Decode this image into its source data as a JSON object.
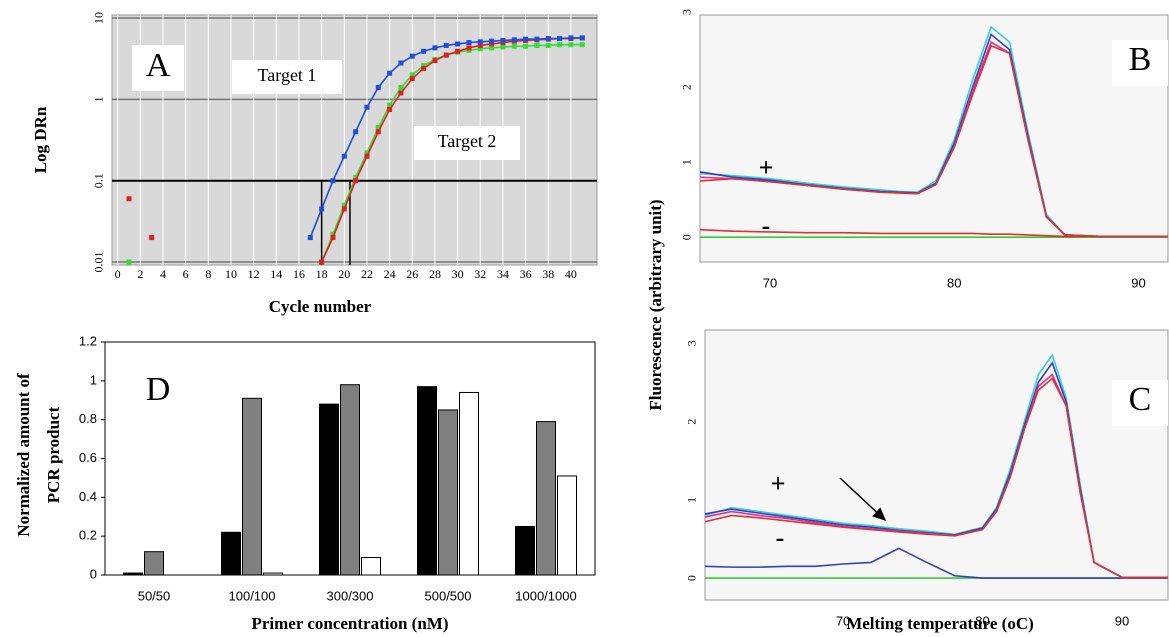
{
  "chart_data": [
    {
      "type": "line",
      "yscale": "log",
      "markers": true,
      "panel_label": "A",
      "ylabel": "Log DRn",
      "xlabel": "Cycle number",
      "annotations": [
        "Target 1",
        "Target 2"
      ],
      "xlim": [
        -0.5,
        42.3
      ],
      "ylim": [
        0.0092,
        10.9
      ],
      "xticks": [
        0,
        2,
        4,
        6,
        8,
        10,
        12,
        14,
        16,
        18,
        20,
        22,
        24,
        26,
        28,
        30,
        32,
        34,
        36,
        38,
        40
      ],
      "yticks": [
        0.01,
        0.1,
        1,
        10
      ],
      "grid": true,
      "background": "#d9d9d9",
      "threshold": 0.1,
      "ct": [
        18,
        20.5
      ],
      "series": [
        {
          "color": "#33dd33",
          "x": [
            1,
            2,
            18,
            19,
            20,
            21,
            22,
            23,
            24,
            25,
            26,
            27,
            28,
            29,
            30,
            31,
            32,
            33,
            34,
            35,
            36,
            37,
            38,
            39,
            40,
            41
          ],
          "values": [
            0.01,
            null,
            0.01,
            0.022,
            0.05,
            0.11,
            0.22,
            0.45,
            0.85,
            1.4,
            2.0,
            2.6,
            3.1,
            3.5,
            3.8,
            4.0,
            4.2,
            4.3,
            4.4,
            4.5,
            4.5,
            4.6,
            4.6,
            4.7,
            4.7,
            4.7
          ]
        },
        {
          "color": "#e02020",
          "x": [
            1,
            2,
            3,
            4,
            18,
            19,
            20,
            21,
            22,
            23,
            24,
            25,
            26,
            27,
            28,
            29,
            30,
            31,
            32,
            33,
            34,
            35,
            36,
            37,
            38,
            39,
            40,
            41
          ],
          "values": [
            0.06,
            null,
            0.02,
            null,
            0.01,
            0.02,
            0.045,
            0.1,
            0.2,
            0.4,
            0.75,
            1.2,
            1.8,
            2.4,
            3.0,
            3.5,
            3.9,
            4.3,
            4.6,
            4.8,
            5.0,
            5.2,
            5.3,
            5.4,
            5.5,
            5.6,
            5.6,
            5.7
          ]
        },
        {
          "color": "#1f4fd8",
          "x": [
            17,
            18,
            19,
            20,
            21,
            22,
            23,
            24,
            25,
            26,
            27,
            28,
            29,
            30,
            31,
            32,
            33,
            34,
            35,
            36,
            37,
            38,
            39,
            40,
            41
          ],
          "values": [
            0.02,
            0.045,
            0.1,
            0.2,
            0.4,
            0.8,
            1.4,
            2.1,
            2.8,
            3.4,
            3.9,
            4.3,
            4.6,
            4.8,
            5.0,
            5.1,
            5.2,
            5.3,
            5.4,
            5.5,
            5.5,
            5.6,
            5.6,
            5.7,
            5.7
          ]
        }
      ]
    },
    {
      "type": "line",
      "panel_label": "B",
      "ylabel": "Fluorescence (arbitrary unit)",
      "annotations": [
        "+",
        "-"
      ],
      "xlim": [
        66.2,
        91.6
      ],
      "ylim": [
        -0.33,
        2.96
      ],
      "xticks": [
        70,
        80,
        90
      ],
      "yticks": [
        0,
        1,
        2,
        3
      ],
      "background": "#f6f6f6",
      "x": [
        66.2,
        68,
        70,
        72,
        74,
        76,
        77,
        78,
        79,
        80,
        81,
        82,
        83,
        84,
        85,
        86,
        88,
        90,
        91.6
      ],
      "series": [
        {
          "color": "#33cc33",
          "values": [
            0,
            0,
            0,
            0,
            0,
            0,
            0,
            0,
            0,
            0,
            0,
            0,
            0,
            0,
            0,
            0,
            0,
            0,
            0
          ]
        },
        {
          "color": "#e03030",
          "values": [
            0.1,
            0.08,
            0.07,
            0.06,
            0.06,
            0.05,
            0.05,
            0.05,
            0.05,
            0.05,
            0.05,
            0.04,
            0.04,
            0.03,
            0.02,
            0.01,
            0.01,
            0.01,
            0.01
          ]
        },
        {
          "color": "#30d0e0",
          "values": [
            0.85,
            0.82,
            0.78,
            0.72,
            0.67,
            0.63,
            0.61,
            0.6,
            0.75,
            1.3,
            2.1,
            2.8,
            2.6,
            1.4,
            0.3,
            0.03,
            0.01,
            0.01,
            0.01
          ]
        },
        {
          "color": "#3040c0",
          "values": [
            0.87,
            0.8,
            0.76,
            0.7,
            0.65,
            0.61,
            0.6,
            0.59,
            0.72,
            1.25,
            2.0,
            2.7,
            2.5,
            1.35,
            0.28,
            0.03,
            0.01,
            0.01,
            0.01
          ]
        },
        {
          "color": "#e03090",
          "values": [
            0.8,
            0.78,
            0.74,
            0.69,
            0.64,
            0.6,
            0.59,
            0.58,
            0.7,
            1.2,
            1.95,
            2.6,
            2.45,
            1.3,
            0.27,
            0.03,
            0.01,
            0.01,
            0.01
          ]
        },
        {
          "color": "#e03030",
          "values": [
            0.75,
            0.78,
            0.74,
            0.69,
            0.64,
            0.6,
            0.59,
            0.58,
            0.7,
            1.2,
            1.9,
            2.55,
            2.45,
            1.3,
            0.27,
            0.03,
            0.01,
            0.01,
            0.01
          ]
        }
      ]
    },
    {
      "type": "line",
      "panel_label": "C",
      "xlabel": "Melting temperature (oC)",
      "annotations": [
        "+",
        "-"
      ],
      "xlim": [
        60.1,
        93.3
      ],
      "ylim": [
        -0.28,
        3.17
      ],
      "xticks": [
        70,
        80,
        90
      ],
      "yticks": [
        0,
        1,
        2,
        3
      ],
      "background": "#f6f6f6",
      "x": [
        60.1,
        62,
        64,
        66,
        68,
        70,
        72,
        74,
        76,
        78,
        80,
        81,
        82,
        83,
        84,
        85,
        86,
        87,
        88,
        90,
        93.3
      ],
      "series": [
        {
          "color": "#33cc33",
          "values": [
            0,
            0,
            0,
            0,
            0,
            0,
            0,
            0,
            0,
            0,
            0,
            0,
            0,
            0,
            0,
            0,
            0,
            0,
            0,
            0,
            0
          ]
        },
        {
          "color": "#3040c0",
          "values": [
            0.15,
            0.14,
            0.14,
            0.15,
            0.15,
            0.18,
            0.2,
            0.38,
            0.2,
            0.03,
            0,
            0,
            0,
            0,
            0,
            0,
            0,
            0,
            0,
            0,
            0
          ]
        },
        {
          "color": "#30d0e0",
          "values": [
            0.8,
            0.9,
            0.85,
            0.8,
            0.75,
            0.7,
            0.67,
            0.63,
            0.6,
            0.56,
            0.65,
            0.9,
            1.4,
            2.0,
            2.6,
            2.85,
            2.3,
            1.2,
            0.2,
            0.01,
            0.01
          ]
        },
        {
          "color": "#3040c0",
          "values": [
            0.82,
            0.88,
            0.83,
            0.78,
            0.73,
            0.68,
            0.65,
            0.61,
            0.58,
            0.55,
            0.64,
            0.88,
            1.35,
            1.95,
            2.5,
            2.75,
            2.25,
            1.15,
            0.2,
            0.01,
            0.01
          ]
        },
        {
          "color": "#e03090",
          "values": [
            0.78,
            0.85,
            0.8,
            0.76,
            0.71,
            0.66,
            0.63,
            0.6,
            0.57,
            0.54,
            0.62,
            0.85,
            1.3,
            1.9,
            2.45,
            2.6,
            2.2,
            1.1,
            0.2,
            0.01,
            0.01
          ]
        },
        {
          "color": "#e03030",
          "values": [
            0.72,
            0.8,
            0.77,
            0.73,
            0.69,
            0.65,
            0.62,
            0.59,
            0.56,
            0.54,
            0.62,
            0.85,
            1.3,
            1.9,
            2.4,
            2.55,
            2.2,
            1.1,
            0.2,
            0.01,
            0.01
          ]
        }
      ]
    },
    {
      "type": "bar",
      "panel_label": "D",
      "ylabel": [
        "Normalized amount of",
        "PCR product"
      ],
      "xlabel": "Primer concentration (nM)",
      "categories": [
        "50/50",
        "100/100",
        "300/300",
        "500/500",
        "1000/1000"
      ],
      "ylim": [
        0,
        1.2
      ],
      "yticks": [
        0,
        0.2,
        0.4,
        0.6,
        0.8,
        1,
        1.2
      ],
      "background": "#ffffff",
      "series": [
        {
          "color": "#000000",
          "values": [
            0.01,
            0.22,
            0.88,
            0.97,
            0.25
          ]
        },
        {
          "color": "#808080",
          "values": [
            0.12,
            0.91,
            0.98,
            0.85,
            0.79
          ]
        },
        {
          "color": "#ffffff",
          "values": [
            0,
            0.01,
            0.09,
            0.94,
            0.51
          ]
        }
      ]
    }
  ]
}
